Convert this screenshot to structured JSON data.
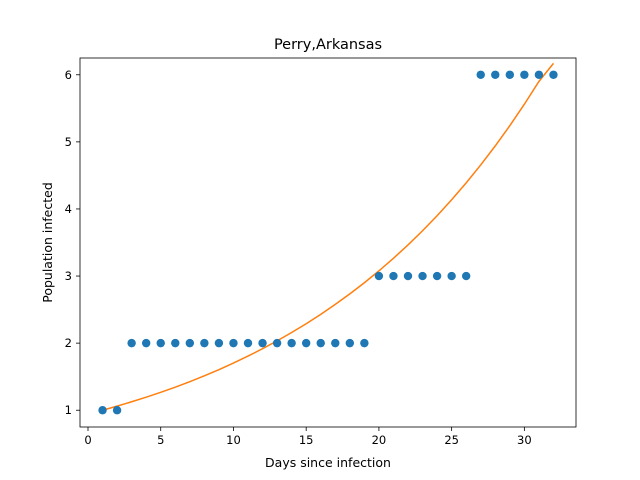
{
  "chart_data": {
    "type": "scatter",
    "title": "Perry,Arkansas",
    "xlabel": "Days since infection",
    "ylabel": "Population infected",
    "xlim": [
      -0.55,
      33.55
    ],
    "ylim": [
      0.75,
      6.25
    ],
    "xticks": [
      0,
      5,
      10,
      15,
      20,
      25,
      30
    ],
    "yticks": [
      1,
      2,
      3,
      4,
      5,
      6
    ],
    "grid": false,
    "colors": {
      "points": "#1f77b4",
      "fit": "#ff7f0e"
    },
    "series": [
      {
        "kind": "scatter",
        "x": [
          1,
          2,
          3,
          4,
          5,
          6,
          7,
          8,
          9,
          10,
          11,
          12,
          13,
          14,
          15,
          16,
          17,
          18,
          19,
          20,
          21,
          22,
          23,
          24,
          25,
          26,
          27,
          28,
          29,
          30,
          31,
          32
        ],
        "y": [
          1,
          1,
          2,
          2,
          2,
          2,
          2,
          2,
          2,
          2,
          2,
          2,
          2,
          2,
          2,
          2,
          2,
          2,
          2,
          3,
          3,
          3,
          3,
          3,
          3,
          3,
          6,
          6,
          6,
          6,
          6,
          6
        ]
      },
      {
        "kind": "line",
        "x": [
          1,
          2,
          3,
          4,
          5,
          6,
          7,
          8,
          9,
          10,
          11,
          12,
          13,
          14,
          15,
          16,
          17,
          18,
          19,
          20,
          21,
          22,
          23,
          24,
          25,
          26,
          27,
          28,
          29,
          30,
          31,
          32
        ],
        "y": [
          1.0,
          1.061,
          1.126,
          1.194,
          1.267,
          1.344,
          1.426,
          1.513,
          1.605,
          1.703,
          1.807,
          1.917,
          2.034,
          2.158,
          2.289,
          2.429,
          2.577,
          2.734,
          2.9,
          3.077,
          3.265,
          3.464,
          3.675,
          3.899,
          4.137,
          4.389,
          4.656,
          4.94,
          5.241,
          5.561,
          5.9,
          6.17
        ]
      }
    ]
  }
}
